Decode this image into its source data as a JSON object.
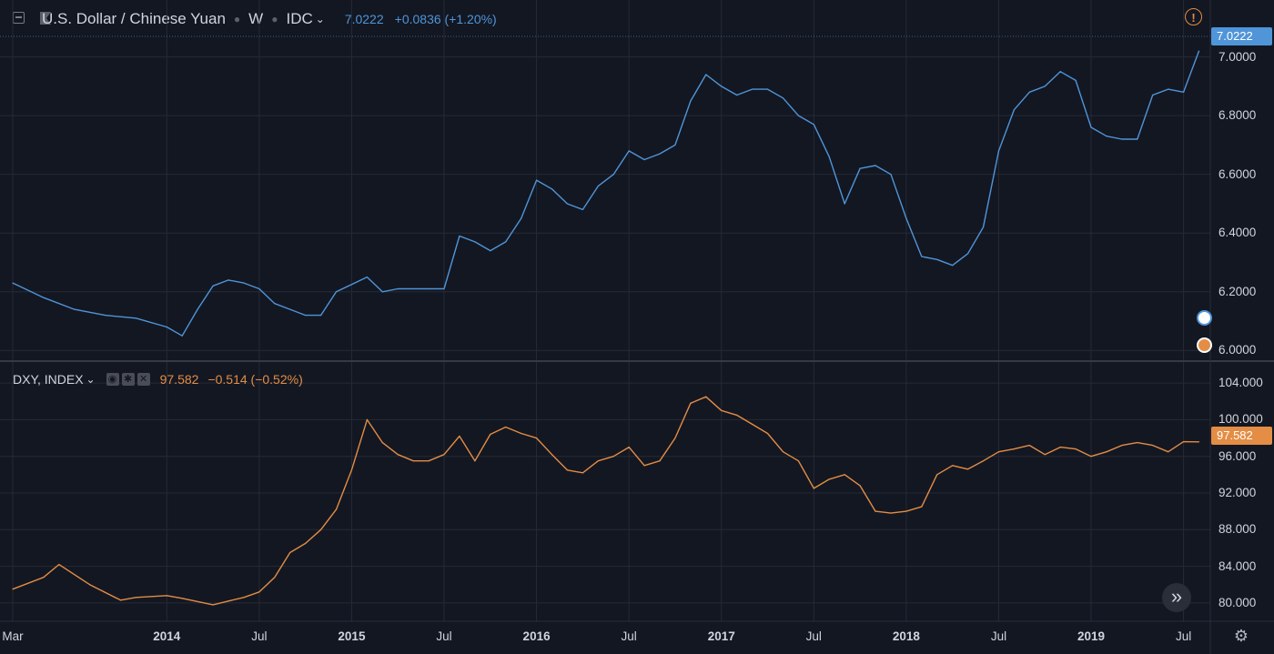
{
  "top_pane": {
    "symbol_title": "U.S. Dollar / Chinese Yuan",
    "interval": "W",
    "exchange": "IDC",
    "last_value": "7.0222",
    "change": "+0.0836 (+1.20%)",
    "price_tag": "7.0222",
    "color": "#4f95d8"
  },
  "bottom_pane": {
    "symbol_title": "DXY, INDEX",
    "last_value": "97.582",
    "change": "−0.514 (−0.52%)",
    "price_tag": "97.582",
    "color": "#e38d45"
  },
  "icons": {
    "alert": "!",
    "scroll_to_latest": "»",
    "settings": "⚙"
  },
  "time_axis": [
    {
      "label": "Mar",
      "bold": false
    },
    {
      "label": "2014",
      "bold": true
    },
    {
      "label": "Jul",
      "bold": false
    },
    {
      "label": "2015",
      "bold": true
    },
    {
      "label": "Jul",
      "bold": false
    },
    {
      "label": "2016",
      "bold": true
    },
    {
      "label": "Jul",
      "bold": false
    },
    {
      "label": "2017",
      "bold": true
    },
    {
      "label": "Jul",
      "bold": false
    },
    {
      "label": "2018",
      "bold": true
    },
    {
      "label": "Jul",
      "bold": false
    },
    {
      "label": "2019",
      "bold": true
    },
    {
      "label": "Jul",
      "bold": false
    }
  ],
  "chart_data": [
    {
      "type": "line",
      "series": [
        {
          "name": "U.S. Dollar / Chinese Yuan",
          "color": "#4f95d8"
        }
      ],
      "x": [
        "2013-03",
        "2013-05",
        "2013-07",
        "2013-09",
        "2013-11",
        "2014-01",
        "2014-02",
        "2014-03",
        "2014-04",
        "2014-05",
        "2014-06",
        "2014-07",
        "2014-08",
        "2014-09",
        "2014-10",
        "2014-11",
        "2014-12",
        "2015-02",
        "2015-03",
        "2015-04",
        "2015-06",
        "2015-07",
        "2015-08",
        "2015-09",
        "2015-10",
        "2015-11",
        "2015-12",
        "2016-01",
        "2016-02",
        "2016-03",
        "2016-04",
        "2016-05",
        "2016-06",
        "2016-07",
        "2016-08",
        "2016-09",
        "2016-10",
        "2016-11",
        "2016-12",
        "2017-01",
        "2017-02",
        "2017-03",
        "2017-04",
        "2017-05",
        "2017-06",
        "2017-07",
        "2017-08",
        "2017-09",
        "2017-10",
        "2017-11",
        "2017-12",
        "2018-01",
        "2018-02",
        "2018-03",
        "2018-04",
        "2018-05",
        "2018-06",
        "2018-07",
        "2018-08",
        "2018-09",
        "2018-10",
        "2018-11",
        "2018-12",
        "2019-01",
        "2019-02",
        "2019-03",
        "2019-04",
        "2019-05",
        "2019-06",
        "2019-07",
        "2019-08"
      ],
      "y": [
        6.23,
        6.18,
        6.14,
        6.12,
        6.11,
        6.08,
        6.05,
        6.14,
        6.22,
        6.24,
        6.23,
        6.21,
        6.16,
        6.14,
        6.12,
        6.12,
        6.2,
        6.25,
        6.2,
        6.21,
        6.21,
        6.21,
        6.39,
        6.37,
        6.34,
        6.37,
        6.45,
        6.58,
        6.55,
        6.5,
        6.48,
        6.56,
        6.6,
        6.68,
        6.65,
        6.67,
        6.7,
        6.85,
        6.94,
        6.9,
        6.87,
        6.89,
        6.89,
        6.86,
        6.8,
        6.77,
        6.66,
        6.5,
        6.62,
        6.63,
        6.6,
        6.45,
        6.32,
        6.31,
        6.29,
        6.33,
        6.42,
        6.68,
        6.82,
        6.88,
        6.9,
        6.95,
        6.92,
        6.76,
        6.73,
        6.72,
        6.72,
        6.87,
        6.89,
        6.88,
        7.02
      ],
      "ylim": [
        5.97,
        7.07
      ],
      "y_ticks": [
        "6.0000",
        "6.2000",
        "6.4000",
        "6.6000",
        "6.8000",
        "7.0000"
      ],
      "grid": true
    },
    {
      "type": "line",
      "series": [
        {
          "name": "DXY, INDEX",
          "color": "#e38d45"
        }
      ],
      "x": [
        "2013-03",
        "2013-05",
        "2013-06",
        "2013-08",
        "2013-10",
        "2013-11",
        "2014-01",
        "2014-02",
        "2014-04",
        "2014-05",
        "2014-06",
        "2014-07",
        "2014-08",
        "2014-09",
        "2014-10",
        "2014-11",
        "2014-12",
        "2015-01",
        "2015-02",
        "2015-03",
        "2015-04",
        "2015-05",
        "2015-06",
        "2015-07",
        "2015-08",
        "2015-09",
        "2015-10",
        "2015-11",
        "2015-12",
        "2016-01",
        "2016-02",
        "2016-03",
        "2016-04",
        "2016-05",
        "2016-06",
        "2016-07",
        "2016-08",
        "2016-09",
        "2016-10",
        "2016-11",
        "2016-12",
        "2017-01",
        "2017-02",
        "2017-03",
        "2017-04",
        "2017-05",
        "2017-06",
        "2017-07",
        "2017-08",
        "2017-09",
        "2017-10",
        "2017-11",
        "2017-12",
        "2018-01",
        "2018-02",
        "2018-03",
        "2018-04",
        "2018-05",
        "2018-06",
        "2018-07",
        "2018-08",
        "2018-09",
        "2018-10",
        "2018-11",
        "2018-12",
        "2019-01",
        "2019-02",
        "2019-03",
        "2019-04",
        "2019-05",
        "2019-06",
        "2019-07",
        "2019-08"
      ],
      "y": [
        81.5,
        82.8,
        84.2,
        82.0,
        80.3,
        80.6,
        80.8,
        80.5,
        79.8,
        80.2,
        80.6,
        81.2,
        82.8,
        85.5,
        86.5,
        88.0,
        90.2,
        94.5,
        100.0,
        97.5,
        96.2,
        95.5,
        95.5,
        96.2,
        98.2,
        95.5,
        98.4,
        99.2,
        98.5,
        98.0,
        96.2,
        94.5,
        94.2,
        95.5,
        96.0,
        97.0,
        95.0,
        95.5,
        98.0,
        101.8,
        102.5,
        101.0,
        100.5,
        99.5,
        98.5,
        96.5,
        95.5,
        92.5,
        93.5,
        94.0,
        92.8,
        90.0,
        89.8,
        90.0,
        90.5,
        94.0,
        95.0,
        94.6,
        95.5,
        96.5,
        96.8,
        97.2,
        96.2,
        97.0,
        96.8,
        96.0,
        96.5,
        97.2,
        97.5,
        97.2,
        96.5,
        97.6,
        97.58
      ],
      "ylim": [
        78.0,
        105.6
      ],
      "y_ticks": [
        "80.000",
        "84.000",
        "88.000",
        "92.000",
        "96.000",
        "100.000",
        "104.000"
      ],
      "grid": true
    }
  ]
}
